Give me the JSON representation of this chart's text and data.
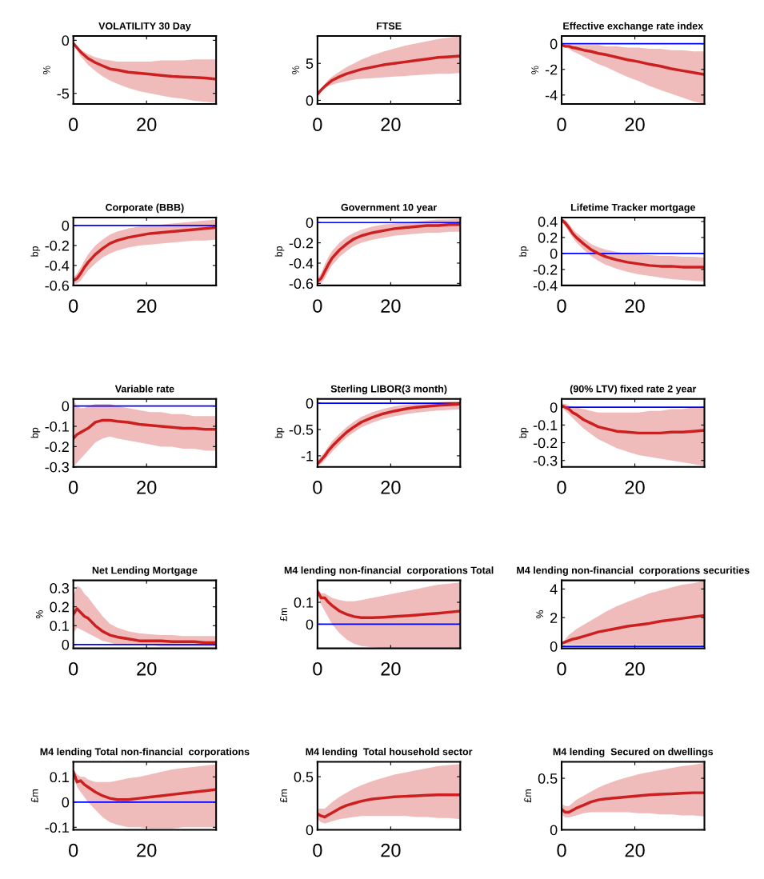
{
  "chart_data": [
    {
      "type": "line",
      "title": "VOLATILITY 30 Day",
      "ylabel": "%",
      "x": [
        0,
        1,
        2,
        3,
        4,
        6,
        8,
        10,
        12,
        15,
        18,
        21,
        24,
        27,
        30,
        33,
        36,
        39
      ],
      "xlim": [
        0,
        39
      ],
      "xticks": [
        0,
        20
      ],
      "ylim": [
        -6,
        0.4
      ],
      "yticks": [
        -5,
        0
      ],
      "series": [
        {
          "color": "#cc1f1f",
          "values": [
            -0.3,
            -0.7,
            -1.1,
            -1.4,
            -1.7,
            -2.1,
            -2.4,
            -2.7,
            -2.8,
            -3.0,
            -3.1,
            -3.2,
            -3.3,
            -3.4,
            -3.45,
            -3.5,
            -3.55,
            -3.65
          ],
          "lower": [
            -0.3,
            -0.9,
            -1.5,
            -1.9,
            -2.3,
            -2.9,
            -3.4,
            -3.8,
            -4.1,
            -4.5,
            -4.8,
            -5.0,
            -5.2,
            -5.4,
            -5.5,
            -5.7,
            -5.8,
            -5.9
          ],
          "upper": [
            -0.3,
            -0.6,
            -0.9,
            -1.1,
            -1.3,
            -1.6,
            -1.8,
            -1.9,
            -2.0,
            -2.0,
            -2.0,
            -2.0,
            -1.9,
            -1.9,
            -1.9,
            -1.8,
            -1.8,
            -1.8
          ]
        }
      ]
    },
    {
      "type": "line",
      "title": "FTSE",
      "ylabel": "%",
      "x": [
        0,
        1,
        2,
        3,
        4,
        6,
        8,
        10,
        12,
        15,
        18,
        21,
        24,
        27,
        30,
        33,
        36,
        39
      ],
      "xlim": [
        0,
        39
      ],
      "xticks": [
        0,
        20
      ],
      "ylim": [
        -0.5,
        8.7
      ],
      "yticks": [
        0,
        5
      ],
      "series": [
        {
          "color": "#cc1f1f",
          "values": [
            0.8,
            1.4,
            1.9,
            2.3,
            2.7,
            3.2,
            3.6,
            3.9,
            4.2,
            4.5,
            4.8,
            5.0,
            5.2,
            5.4,
            5.6,
            5.8,
            5.9,
            6.0
          ],
          "lower": [
            0.8,
            1.2,
            1.6,
            1.9,
            2.1,
            2.4,
            2.6,
            2.8,
            2.9,
            3.0,
            3.1,
            3.2,
            3.3,
            3.4,
            3.5,
            3.6,
            3.6,
            3.7
          ],
          "upper": [
            0.8,
            1.6,
            2.2,
            2.8,
            3.2,
            3.9,
            4.5,
            5.0,
            5.5,
            6.1,
            6.6,
            7.0,
            7.4,
            7.7,
            8.0,
            8.3,
            8.5,
            8.7
          ]
        }
      ]
    },
    {
      "type": "line",
      "title": "Effective exchange rate index",
      "ylabel": "%",
      "x": [
        0,
        1,
        2,
        3,
        4,
        6,
        8,
        10,
        12,
        15,
        18,
        21,
        24,
        27,
        30,
        33,
        36,
        39
      ],
      "xlim": [
        0,
        39
      ],
      "xticks": [
        0,
        20
      ],
      "ylim": [
        -4.7,
        0.6
      ],
      "yticks": [
        -4,
        -2,
        0
      ],
      "ref_lines": [
        {
          "axis": "y",
          "value": 0,
          "color": "#0000ff"
        }
      ],
      "series": [
        {
          "color": "#cc1f1f",
          "values": [
            -0.1,
            -0.2,
            -0.2,
            -0.3,
            -0.35,
            -0.5,
            -0.6,
            -0.75,
            -0.85,
            -1.05,
            -1.25,
            -1.4,
            -1.6,
            -1.75,
            -1.95,
            -2.1,
            -2.25,
            -2.4
          ],
          "lower": [
            -0.1,
            -0.3,
            -0.4,
            -0.6,
            -0.7,
            -1.0,
            -1.3,
            -1.6,
            -1.8,
            -2.2,
            -2.6,
            -2.9,
            -3.3,
            -3.6,
            -3.9,
            -4.2,
            -4.5,
            -4.7
          ],
          "upper": [
            -0.1,
            -0.1,
            -0.1,
            -0.1,
            -0.1,
            -0.1,
            -0.1,
            -0.1,
            -0.2,
            -0.2,
            -0.3,
            -0.3,
            -0.4,
            -0.4,
            -0.5,
            -0.5,
            -0.6,
            -0.6
          ]
        }
      ]
    },
    {
      "type": "line",
      "title": "Corporate (BBB)",
      "ylabel": "bp",
      "x": [
        0,
        1,
        2,
        3,
        4,
        6,
        8,
        10,
        12,
        15,
        18,
        21,
        24,
        27,
        30,
        33,
        36,
        39
      ],
      "xlim": [
        0,
        39
      ],
      "xticks": [
        0,
        20
      ],
      "ylim": [
        -0.6,
        0.08
      ],
      "yticks": [
        -0.6,
        -0.4,
        -0.2,
        0
      ],
      "ref_lines": [
        {
          "axis": "y",
          "value": 0,
          "color": "#0000ff"
        }
      ],
      "series": [
        {
          "color": "#cc1f1f",
          "values": [
            -0.55,
            -0.53,
            -0.48,
            -0.42,
            -0.37,
            -0.29,
            -0.23,
            -0.18,
            -0.15,
            -0.12,
            -0.1,
            -0.08,
            -0.07,
            -0.06,
            -0.05,
            -0.04,
            -0.03,
            -0.02
          ],
          "lower": [
            -0.58,
            -0.58,
            -0.55,
            -0.5,
            -0.45,
            -0.38,
            -0.32,
            -0.28,
            -0.25,
            -0.22,
            -0.2,
            -0.19,
            -0.18,
            -0.17,
            -0.16,
            -0.15,
            -0.15,
            -0.14
          ],
          "upper": [
            -0.52,
            -0.48,
            -0.42,
            -0.35,
            -0.29,
            -0.2,
            -0.14,
            -0.09,
            -0.06,
            -0.03,
            -0.01,
            0.0,
            0.01,
            0.02,
            0.03,
            0.04,
            0.05,
            0.06
          ]
        }
      ]
    },
    {
      "type": "line",
      "title": "Government 10 year",
      "ylabel": "bp",
      "x": [
        0,
        1,
        2,
        3,
        4,
        6,
        8,
        10,
        12,
        15,
        18,
        21,
        24,
        27,
        30,
        33,
        36,
        39
      ],
      "xlim": [
        0,
        39
      ],
      "xticks": [
        0,
        20
      ],
      "ylim": [
        -0.62,
        0.05
      ],
      "yticks": [
        -0.6,
        -0.4,
        -0.2,
        0
      ],
      "ref_lines": [
        {
          "axis": "y",
          "value": 0,
          "color": "#0000ff"
        }
      ],
      "series": [
        {
          "color": "#cc1f1f",
          "values": [
            -0.58,
            -0.55,
            -0.48,
            -0.41,
            -0.35,
            -0.27,
            -0.21,
            -0.16,
            -0.13,
            -0.1,
            -0.08,
            -0.06,
            -0.05,
            -0.04,
            -0.03,
            -0.03,
            -0.02,
            -0.02
          ],
          "lower": [
            -0.61,
            -0.6,
            -0.55,
            -0.48,
            -0.42,
            -0.34,
            -0.28,
            -0.23,
            -0.2,
            -0.17,
            -0.15,
            -0.13,
            -0.12,
            -0.11,
            -0.1,
            -0.1,
            -0.09,
            -0.09
          ],
          "upper": [
            -0.55,
            -0.5,
            -0.41,
            -0.34,
            -0.28,
            -0.2,
            -0.14,
            -0.1,
            -0.07,
            -0.04,
            -0.02,
            -0.01,
            0.0,
            0.01,
            0.02,
            0.03,
            0.03,
            0.04
          ]
        }
      ]
    },
    {
      "type": "line",
      "title": "Lifetime Tracker mortgage",
      "ylabel": "bp",
      "x": [
        0,
        1,
        2,
        3,
        4,
        6,
        8,
        10,
        12,
        15,
        18,
        21,
        24,
        27,
        30,
        33,
        36,
        39
      ],
      "xlim": [
        0,
        39
      ],
      "xticks": [
        0,
        20
      ],
      "ylim": [
        -0.4,
        0.45
      ],
      "yticks": [
        -0.4,
        -0.2,
        0,
        0.2,
        0.4
      ],
      "ref_lines": [
        {
          "axis": "y",
          "value": 0,
          "color": "#0000ff"
        }
      ],
      "series": [
        {
          "color": "#cc1f1f",
          "values": [
            0.42,
            0.38,
            0.32,
            0.25,
            0.2,
            0.12,
            0.05,
            0.0,
            -0.04,
            -0.08,
            -0.11,
            -0.13,
            -0.15,
            -0.16,
            -0.16,
            -0.17,
            -0.17,
            -0.17
          ],
          "lower": [
            0.4,
            0.34,
            0.27,
            0.2,
            0.14,
            0.05,
            -0.03,
            -0.09,
            -0.14,
            -0.19,
            -0.23,
            -0.26,
            -0.28,
            -0.3,
            -0.32,
            -0.33,
            -0.34,
            -0.35
          ],
          "upper": [
            0.44,
            0.42,
            0.37,
            0.31,
            0.26,
            0.19,
            0.12,
            0.08,
            0.05,
            0.02,
            0.0,
            -0.01,
            -0.02,
            -0.03,
            -0.03,
            -0.04,
            -0.04,
            -0.05
          ]
        }
      ]
    },
    {
      "type": "line",
      "title": "Variable rate",
      "ylabel": "bp",
      "x": [
        0,
        1,
        2,
        3,
        4,
        6,
        8,
        10,
        12,
        15,
        18,
        21,
        24,
        27,
        30,
        33,
        36,
        39
      ],
      "xlim": [
        0,
        39
      ],
      "xticks": [
        0,
        20
      ],
      "ylim": [
        -0.3,
        0.035
      ],
      "yticks": [
        -0.3,
        -0.2,
        -0.1,
        0
      ],
      "ref_lines": [
        {
          "axis": "y",
          "value": 0,
          "color": "#0000ff"
        }
      ],
      "series": [
        {
          "color": "#cc1f1f",
          "values": [
            -0.16,
            -0.14,
            -0.13,
            -0.12,
            -0.11,
            -0.08,
            -0.07,
            -0.07,
            -0.075,
            -0.08,
            -0.09,
            -0.095,
            -0.1,
            -0.105,
            -0.11,
            -0.11,
            -0.115,
            -0.115
          ],
          "lower": [
            -0.3,
            -0.28,
            -0.26,
            -0.24,
            -0.22,
            -0.18,
            -0.16,
            -0.15,
            -0.16,
            -0.17,
            -0.18,
            -0.19,
            -0.2,
            -0.2,
            -0.21,
            -0.21,
            -0.22,
            -0.22
          ],
          "upper": [
            0.03,
            0.0,
            -0.01,
            -0.01,
            0.0,
            0.01,
            0.01,
            0.01,
            0.0,
            -0.01,
            -0.02,
            -0.03,
            -0.03,
            -0.04,
            -0.04,
            -0.05,
            -0.05,
            -0.05
          ]
        }
      ]
    },
    {
      "type": "line",
      "title": "Sterling LIBOR(3 month)",
      "ylabel": "bp",
      "x": [
        0,
        1,
        2,
        3,
        4,
        6,
        8,
        10,
        12,
        15,
        18,
        21,
        24,
        27,
        30,
        33,
        36,
        39
      ],
      "xlim": [
        0,
        39
      ],
      "xticks": [
        0,
        20
      ],
      "ylim": [
        -1.21,
        0.08
      ],
      "yticks": [
        -1,
        -0.5,
        0
      ],
      "ref_lines": [
        {
          "axis": "y",
          "value": 0,
          "color": "#0000ff"
        }
      ],
      "series": [
        {
          "color": "#cc1f1f",
          "values": [
            -1.15,
            -1.08,
            -1.0,
            -0.9,
            -0.82,
            -0.68,
            -0.55,
            -0.45,
            -0.36,
            -0.27,
            -0.2,
            -0.15,
            -0.11,
            -0.08,
            -0.06,
            -0.04,
            -0.03,
            -0.02
          ],
          "lower": [
            -1.2,
            -1.15,
            -1.08,
            -1.0,
            -0.92,
            -0.78,
            -0.65,
            -0.55,
            -0.46,
            -0.37,
            -0.3,
            -0.25,
            -0.21,
            -0.18,
            -0.16,
            -0.14,
            -0.13,
            -0.12
          ],
          "upper": [
            -1.1,
            -1.0,
            -0.92,
            -0.82,
            -0.72,
            -0.58,
            -0.45,
            -0.35,
            -0.26,
            -0.17,
            -0.11,
            -0.06,
            -0.03,
            -0.01,
            0.0,
            0.02,
            0.03,
            0.04
          ]
        }
      ]
    },
    {
      "type": "line",
      "title": "(90% LTV) fixed rate 2 year",
      "ylabel": "bp",
      "x": [
        0,
        1,
        2,
        3,
        4,
        6,
        8,
        10,
        12,
        15,
        18,
        21,
        24,
        27,
        30,
        33,
        36,
        39
      ],
      "xlim": [
        0,
        39
      ],
      "xticks": [
        0,
        20
      ],
      "ylim": [
        -0.336,
        0.047
      ],
      "yticks": [
        -0.3,
        -0.2,
        -0.1,
        0
      ],
      "ref_lines": [
        {
          "axis": "y",
          "value": 0,
          "color": "#0000ff"
        }
      ],
      "series": [
        {
          "color": "#cc1f1f",
          "values": [
            0.01,
            0.0,
            -0.01,
            -0.03,
            -0.04,
            -0.07,
            -0.09,
            -0.11,
            -0.12,
            -0.135,
            -0.14,
            -0.145,
            -0.145,
            -0.145,
            -0.14,
            -0.14,
            -0.135,
            -0.13
          ],
          "lower": [
            0.0,
            -0.02,
            -0.04,
            -0.06,
            -0.08,
            -0.12,
            -0.15,
            -0.18,
            -0.2,
            -0.23,
            -0.25,
            -0.27,
            -0.28,
            -0.29,
            -0.3,
            -0.31,
            -0.32,
            -0.33
          ],
          "upper": [
            0.02,
            0.02,
            0.01,
            0.0,
            0.0,
            -0.01,
            -0.02,
            -0.03,
            -0.03,
            -0.03,
            -0.03,
            -0.03,
            -0.02,
            -0.02,
            -0.01,
            -0.01,
            0.0,
            0.0
          ]
        }
      ]
    },
    {
      "type": "line",
      "title": "Net Lending Mortgage",
      "ylabel": "%",
      "x": [
        0,
        1,
        2,
        3,
        4,
        6,
        8,
        10,
        12,
        15,
        18,
        21,
        24,
        27,
        30,
        33,
        36,
        39
      ],
      "xlim": [
        0,
        39
      ],
      "xticks": [
        0,
        20
      ],
      "ylim": [
        -0.02,
        0.34
      ],
      "yticks": [
        0,
        0.1,
        0.2,
        0.3
      ],
      "ref_lines": [
        {
          "axis": "y",
          "value": 0,
          "color": "#0000ff"
        }
      ],
      "series": [
        {
          "color": "#cc1f1f",
          "values": [
            0.16,
            0.19,
            0.17,
            0.15,
            0.14,
            0.1,
            0.07,
            0.05,
            0.04,
            0.03,
            0.02,
            0.02,
            0.02,
            0.015,
            0.015,
            0.015,
            0.01,
            0.01
          ],
          "lower": [
            0.06,
            0.09,
            0.08,
            0.07,
            0.06,
            0.04,
            0.02,
            0.01,
            0.0,
            0.0,
            0.0,
            0.0,
            -0.01,
            -0.01,
            -0.01,
            -0.01,
            -0.01,
            -0.01
          ],
          "upper": [
            0.26,
            0.31,
            0.3,
            0.27,
            0.25,
            0.2,
            0.15,
            0.11,
            0.09,
            0.07,
            0.06,
            0.055,
            0.05,
            0.05,
            0.045,
            0.045,
            0.045,
            0.045
          ]
        }
      ]
    },
    {
      "type": "line",
      "title": "M4 lending non-financial  corporations Total",
      "ylabel": "£m",
      "x": [
        0,
        1,
        2,
        3,
        4,
        6,
        8,
        10,
        12,
        15,
        18,
        21,
        24,
        27,
        30,
        33,
        36,
        39
      ],
      "xlim": [
        0,
        39
      ],
      "xticks": [
        0,
        20
      ],
      "ylim": [
        -0.11,
        0.2
      ],
      "yticks": [
        0,
        0.1
      ],
      "ref_lines": [
        {
          "axis": "y",
          "value": 0,
          "color": "#0000ff"
        }
      ],
      "series": [
        {
          "color": "#cc1f1f",
          "values": [
            0.15,
            0.12,
            0.12,
            0.1,
            0.085,
            0.06,
            0.045,
            0.035,
            0.03,
            0.03,
            0.032,
            0.035,
            0.038,
            0.042,
            0.046,
            0.05,
            0.055,
            0.06
          ],
          "lower": [
            0.14,
            0.09,
            0.06,
            0.03,
            0.0,
            -0.04,
            -0.07,
            -0.09,
            -0.1,
            -0.105,
            -0.11,
            -0.11,
            -0.11,
            -0.11,
            -0.11,
            -0.11,
            -0.11,
            -0.11
          ],
          "upper": [
            0.16,
            0.14,
            0.14,
            0.13,
            0.12,
            0.11,
            0.105,
            0.105,
            0.11,
            0.12,
            0.13,
            0.14,
            0.15,
            0.16,
            0.17,
            0.18,
            0.185,
            0.19
          ]
        }
      ]
    },
    {
      "type": "line",
      "title": "M4 lending non-financial  corporations securities",
      "ylabel": "%",
      "x": [
        0,
        1,
        2,
        3,
        4,
        6,
        8,
        10,
        12,
        15,
        18,
        21,
        24,
        27,
        30,
        33,
        36,
        39
      ],
      "xlim": [
        0,
        39
      ],
      "xticks": [
        0,
        20
      ],
      "ylim": [
        -0.14,
        4.6
      ],
      "yticks": [
        0,
        2,
        4
      ],
      "ref_lines": [
        {
          "axis": "y",
          "value": 0,
          "color": "#0000ff"
        }
      ],
      "series": [
        {
          "color": "#cc1f1f",
          "values": [
            0.2,
            0.3,
            0.4,
            0.5,
            0.55,
            0.7,
            0.85,
            1.0,
            1.1,
            1.25,
            1.4,
            1.5,
            1.6,
            1.75,
            1.85,
            1.95,
            2.05,
            2.15
          ],
          "lower": [
            0.2,
            0.15,
            0.1,
            0.1,
            0.1,
            0.1,
            0.1,
            0.1,
            0.1,
            0.1,
            0.1,
            0.1,
            0.1,
            0.1,
            0.1,
            0.1,
            0.1,
            0.1
          ],
          "upper": [
            0.2,
            0.5,
            0.8,
            1.0,
            1.2,
            1.5,
            1.8,
            2.1,
            2.4,
            2.8,
            3.1,
            3.4,
            3.7,
            3.9,
            4.1,
            4.3,
            4.4,
            4.6
          ]
        }
      ]
    },
    {
      "type": "line",
      "title": "M4 lending Total non-financial  corporations",
      "ylabel": "£m",
      "x": [
        0,
        1,
        2,
        3,
        4,
        6,
        8,
        10,
        12,
        15,
        18,
        21,
        24,
        27,
        30,
        33,
        36,
        39
      ],
      "xlim": [
        0,
        39
      ],
      "xticks": [
        0,
        20
      ],
      "ylim": [
        -0.11,
        0.16
      ],
      "yticks": [
        -0.1,
        0,
        0.1
      ],
      "ref_lines": [
        {
          "axis": "y",
          "value": 0,
          "color": "#0000ff"
        }
      ],
      "series": [
        {
          "color": "#cc1f1f",
          "values": [
            0.12,
            0.08,
            0.085,
            0.07,
            0.06,
            0.04,
            0.025,
            0.015,
            0.01,
            0.01,
            0.015,
            0.02,
            0.025,
            0.03,
            0.035,
            0.04,
            0.045,
            0.05
          ],
          "lower": [
            0.11,
            0.06,
            0.04,
            0.02,
            0.0,
            -0.03,
            -0.06,
            -0.08,
            -0.09,
            -0.1,
            -0.1,
            -0.105,
            -0.105,
            -0.105,
            -0.1,
            -0.1,
            -0.1,
            -0.1
          ],
          "upper": [
            0.13,
            0.11,
            0.1,
            0.1,
            0.09,
            0.08,
            0.08,
            0.08,
            0.085,
            0.095,
            0.1,
            0.11,
            0.12,
            0.13,
            0.135,
            0.14,
            0.145,
            0.15
          ]
        }
      ]
    },
    {
      "type": "line",
      "title": "M4 lending  Total household sector",
      "ylabel": "£m",
      "x": [
        0,
        1,
        2,
        3,
        4,
        6,
        8,
        10,
        12,
        15,
        18,
        21,
        24,
        27,
        30,
        33,
        36,
        39
      ],
      "xlim": [
        0,
        39
      ],
      "xticks": [
        0,
        20
      ],
      "ylim": [
        0,
        0.64
      ],
      "yticks": [
        0,
        0.5
      ],
      "series": [
        {
          "color": "#cc1f1f",
          "values": [
            0.15,
            0.13,
            0.12,
            0.14,
            0.16,
            0.2,
            0.23,
            0.25,
            0.27,
            0.29,
            0.3,
            0.31,
            0.315,
            0.32,
            0.325,
            0.33,
            0.33,
            0.33
          ],
          "lower": [
            0.1,
            0.07,
            0.06,
            0.07,
            0.08,
            0.1,
            0.11,
            0.12,
            0.13,
            0.13,
            0.13,
            0.13,
            0.13,
            0.12,
            0.12,
            0.11,
            0.11,
            0.1
          ],
          "upper": [
            0.2,
            0.2,
            0.2,
            0.23,
            0.26,
            0.31,
            0.35,
            0.39,
            0.42,
            0.46,
            0.49,
            0.52,
            0.54,
            0.56,
            0.58,
            0.6,
            0.61,
            0.62
          ]
        }
      ]
    },
    {
      "type": "line",
      "title": "M4 lending  Secured on dwellings",
      "ylabel": "£m",
      "x": [
        0,
        1,
        2,
        3,
        4,
        6,
        8,
        10,
        12,
        15,
        18,
        21,
        24,
        27,
        30,
        33,
        36,
        39
      ],
      "xlim": [
        0,
        39
      ],
      "xticks": [
        0,
        20
      ],
      "ylim": [
        0,
        0.66
      ],
      "yticks": [
        0,
        0.5
      ],
      "series": [
        {
          "color": "#cc1f1f",
          "values": [
            0.2,
            0.17,
            0.17,
            0.19,
            0.21,
            0.24,
            0.27,
            0.29,
            0.3,
            0.31,
            0.32,
            0.33,
            0.34,
            0.345,
            0.35,
            0.355,
            0.36,
            0.36
          ],
          "lower": [
            0.15,
            0.12,
            0.12,
            0.13,
            0.14,
            0.16,
            0.17,
            0.17,
            0.17,
            0.17,
            0.17,
            0.16,
            0.16,
            0.15,
            0.15,
            0.14,
            0.14,
            0.13
          ],
          "upper": [
            0.25,
            0.23,
            0.23,
            0.26,
            0.29,
            0.33,
            0.37,
            0.41,
            0.44,
            0.48,
            0.51,
            0.54,
            0.56,
            0.58,
            0.6,
            0.62,
            0.63,
            0.65
          ]
        }
      ]
    }
  ]
}
